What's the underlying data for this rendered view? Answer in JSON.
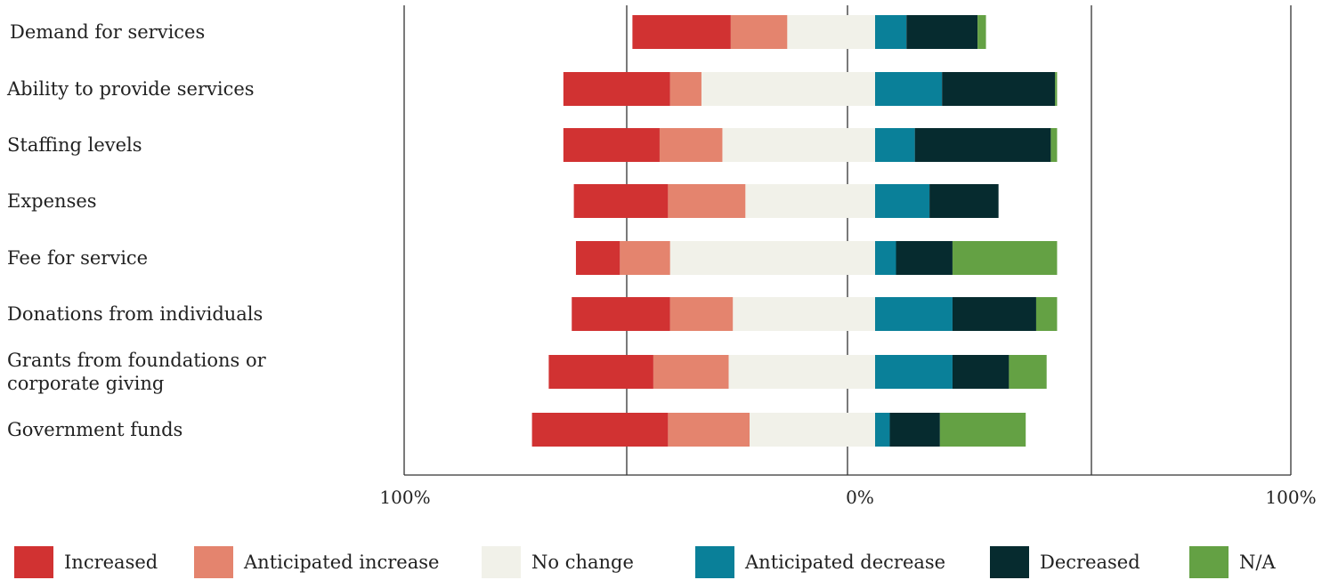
{
  "chart_data": {
    "type": "bar",
    "subtype": "diverging-stacked-horizontal",
    "title": "",
    "xlabel": "",
    "ylabel": "",
    "xlim": [
      -100,
      100
    ],
    "x_tick_labels": [
      "100%",
      "0%",
      "100%"
    ],
    "legend_position": "bottom",
    "grid": true,
    "categories": [
      [
        "Demand for services"
      ],
      [
        "Ability to provide services"
      ],
      [
        "Staffing levels"
      ],
      [
        "Expenses"
      ],
      [
        "Fee for service"
      ],
      [
        "Donations from individuals"
      ],
      [
        "Grants from foundations or",
        "corporate giving"
      ],
      [
        "Government funds"
      ]
    ],
    "negative_series": [
      {
        "name": "Increased",
        "color": "#d13232",
        "values": [
          47,
          51,
          46,
          45,
          21,
          47,
          50,
          65
        ]
      },
      {
        "name": "Anticipated increase",
        "color": "#e4846e",
        "values": [
          27,
          15,
          30,
          37,
          24,
          30,
          36,
          39
        ]
      },
      {
        "name": "No change",
        "color": "#f1f1e9",
        "values": [
          42,
          83,
          73,
          62,
          98,
          68,
          70,
          60
        ]
      }
    ],
    "positive_series": [
      {
        "name": "Anticipated decrease",
        "color": "#0a8099",
        "values": [
          15,
          32,
          19,
          26,
          10,
          37,
          37,
          7
        ]
      },
      {
        "name": "Decreased",
        "color": "#062b2f",
        "values": [
          34,
          54,
          65,
          33,
          27,
          40,
          27,
          24
        ]
      },
      {
        "name": "N/A",
        "color": "#64a144",
        "values": [
          4,
          1,
          3,
          0,
          50,
          10,
          18,
          41
        ]
      }
    ],
    "legend": [
      {
        "label": "Increased",
        "color": "#d13232"
      },
      {
        "label": "Anticipated increase",
        "color": "#e4846e"
      },
      {
        "label": "No change",
        "color": "#f1f1e9"
      },
      {
        "label": "Anticipated decrease",
        "color": "#0a8099"
      },
      {
        "label": "Decreased",
        "color": "#062b2f"
      },
      {
        "label": "N/A",
        "color": "#64a144"
      }
    ]
  }
}
